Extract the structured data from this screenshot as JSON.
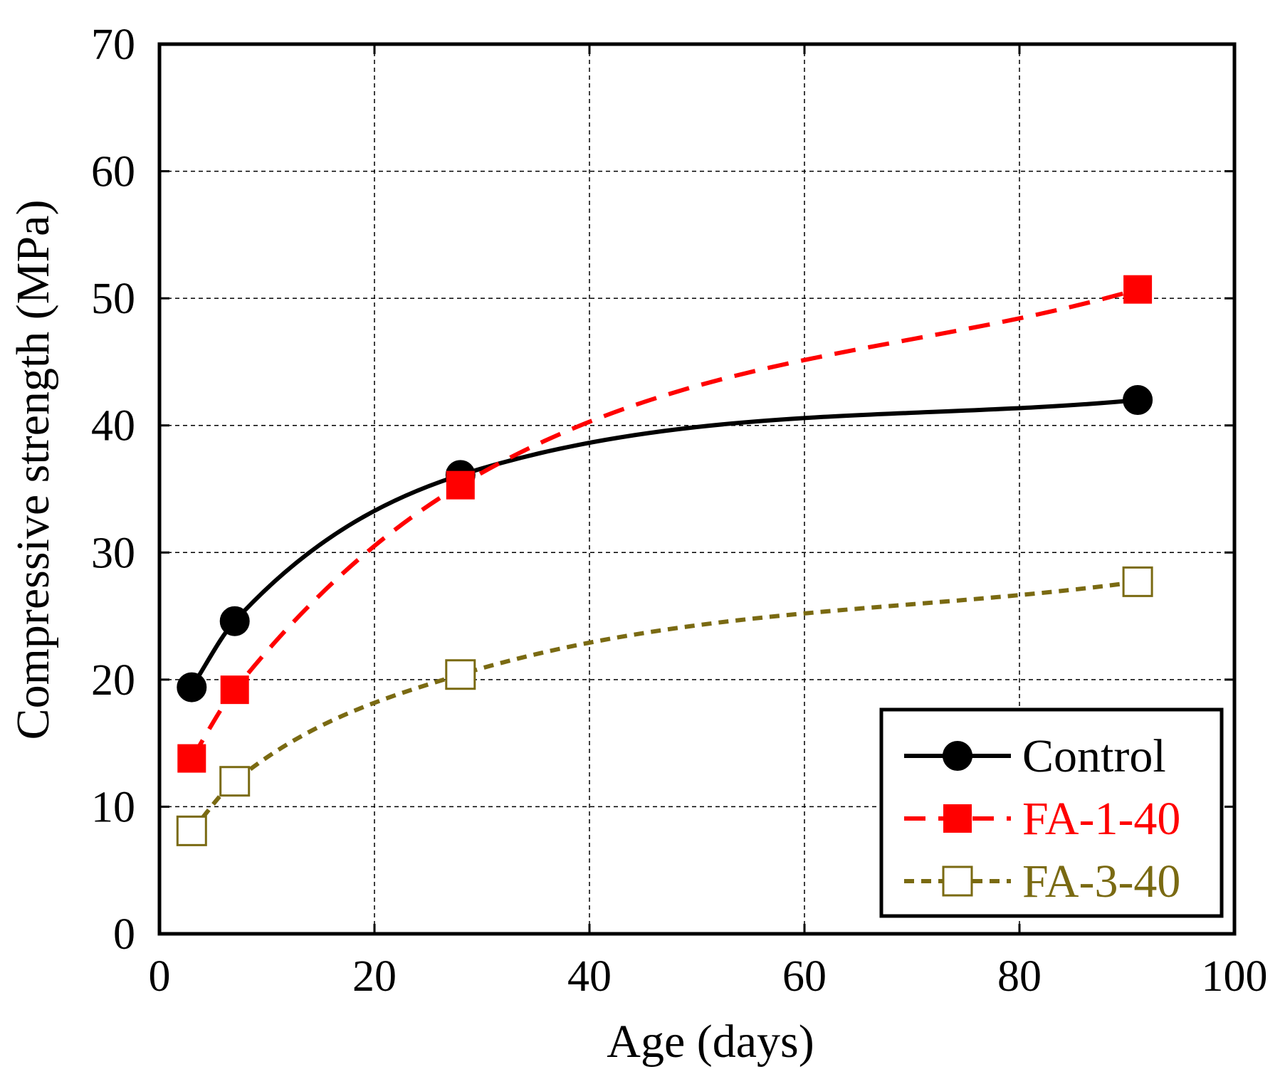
{
  "chart_data": {
    "type": "line",
    "xlabel": "Age (days)",
    "ylabel": "Compressive strength (MPa)",
    "xlim": [
      0,
      100
    ],
    "ylim": [
      0,
      70
    ],
    "xticks": [
      "0",
      "20",
      "40",
      "60",
      "80",
      "100"
    ],
    "yticks": [
      "0",
      "10",
      "20",
      "30",
      "40",
      "50",
      "60",
      "70"
    ],
    "grid": true,
    "legend_position": "bottom-right",
    "series": [
      {
        "name": "Control",
        "color": "#000000",
        "line_style": "solid",
        "marker": "filled-circle",
        "x": [
          3,
          7,
          28,
          91
        ],
        "y": [
          19.4,
          24.6,
          36.1,
          42.0
        ]
      },
      {
        "name": "FA-1-40",
        "color": "#ff0000",
        "line_style": "dashed",
        "marker": "filled-square",
        "x": [
          3,
          7,
          28,
          91
        ],
        "y": [
          13.8,
          19.2,
          35.3,
          50.7
        ]
      },
      {
        "name": "FA-3-40",
        "color": "#7a6a12",
        "line_style": "dotted",
        "marker": "open-square",
        "x": [
          3,
          7,
          28,
          91
        ],
        "y": [
          8.1,
          12.0,
          20.4,
          27.7
        ]
      }
    ]
  }
}
